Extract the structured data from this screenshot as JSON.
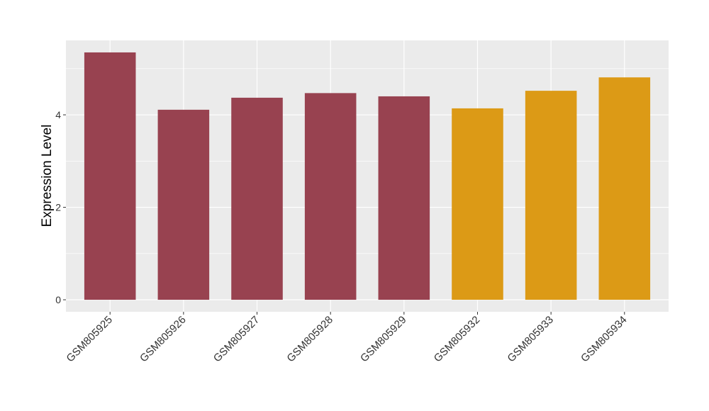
{
  "chart_data": {
    "type": "bar",
    "y_label": "Expression Level",
    "categories": [
      "GSM805925",
      "GSM805926",
      "GSM805927",
      "GSM805928",
      "GSM805929",
      "GSM805932",
      "GSM805933",
      "GSM805934"
    ],
    "values": [
      5.35,
      4.11,
      4.37,
      4.47,
      4.4,
      4.14,
      4.52,
      4.81
    ],
    "colors": [
      "#984250",
      "#984250",
      "#984250",
      "#984250",
      "#984250",
      "#dc9a16",
      "#dc9a16",
      "#dc9a16"
    ],
    "ylim": [
      -0.26,
      5.61
    ],
    "yticks": [
      0,
      2,
      4
    ],
    "y_minor_grid": [
      1,
      3,
      5
    ],
    "grid": true
  }
}
